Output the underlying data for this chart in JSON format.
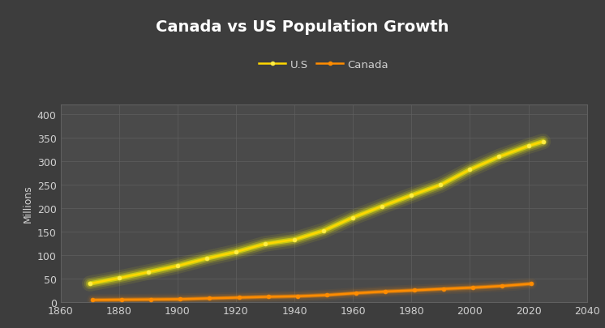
{
  "title": "Canada vs US Population Growth",
  "ylabel": "Millions",
  "background_color": "#3d3d3d",
  "plot_bg_color": "#4a4a4a",
  "grid_color": "#606060",
  "text_color": "#d0d0d0",
  "xlim": [
    1860,
    2040
  ],
  "ylim": [
    0,
    420
  ],
  "yticks": [
    0,
    50,
    100,
    150,
    200,
    250,
    300,
    350,
    400
  ],
  "xticks": [
    1860,
    1880,
    1900,
    1920,
    1940,
    1960,
    1980,
    2000,
    2020,
    2040
  ],
  "canada": {
    "label": "Canada",
    "color": "#ff8c00",
    "glow_color": "#ff8c00",
    "years": [
      1871,
      1881,
      1891,
      1901,
      1911,
      1921,
      1931,
      1941,
      1951,
      1961,
      1971,
      1981,
      1991,
      2001,
      2011,
      2021
    ],
    "population": [
      3.7,
      4.3,
      4.8,
      5.4,
      7.2,
      8.8,
      10.4,
      11.6,
      14.0,
      18.2,
      21.6,
      24.3,
      27.3,
      30.0,
      33.5,
      38.2
    ]
  },
  "us": {
    "label": "U.S",
    "color": "#ffd700",
    "glow_color": "#ffff00",
    "years": [
      1870,
      1880,
      1890,
      1900,
      1910,
      1920,
      1930,
      1940,
      1950,
      1960,
      1970,
      1980,
      1990,
      2000,
      2010,
      2020,
      2025
    ],
    "population": [
      38.6,
      50.2,
      63.0,
      76.2,
      92.2,
      106.0,
      123.2,
      132.2,
      151.3,
      179.3,
      203.3,
      226.5,
      248.7,
      281.4,
      308.7,
      331.4,
      341.0
    ]
  }
}
